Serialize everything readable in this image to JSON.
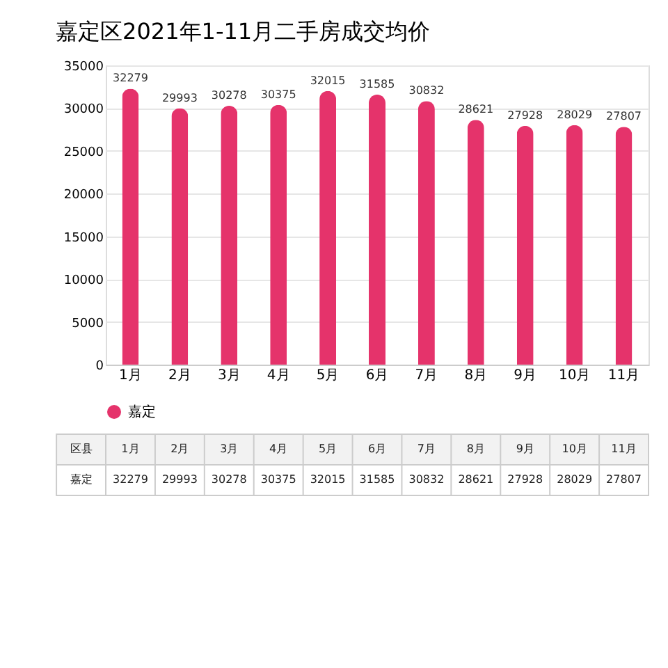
{
  "chart_data": {
    "type": "bar",
    "title": "嘉定区2021年1-11月二手房成交均价",
    "categories": [
      "1月",
      "2月",
      "3月",
      "4月",
      "5月",
      "6月",
      "7月",
      "8月",
      "9月",
      "10月",
      "11月"
    ],
    "series": [
      {
        "name": "嘉定",
        "color": "#e5336b",
        "values": [
          32279,
          29993,
          30278,
          30375,
          32015,
          31585,
          30832,
          28621,
          27928,
          28029,
          27807
        ]
      }
    ],
    "ylim": [
      0,
      35000
    ],
    "yticks": [
      0,
      5000,
      10000,
      15000,
      20000,
      25000,
      30000,
      35000
    ],
    "value_labels": [
      "32279",
      "29993",
      "30278",
      "30375",
      "32015",
      "31585",
      "30832",
      "28621",
      "27928",
      "28029",
      "27807"
    ],
    "grid": "y",
    "legend": "bottom",
    "data_labels": true,
    "annotations": [
      "区县"
    ]
  }
}
